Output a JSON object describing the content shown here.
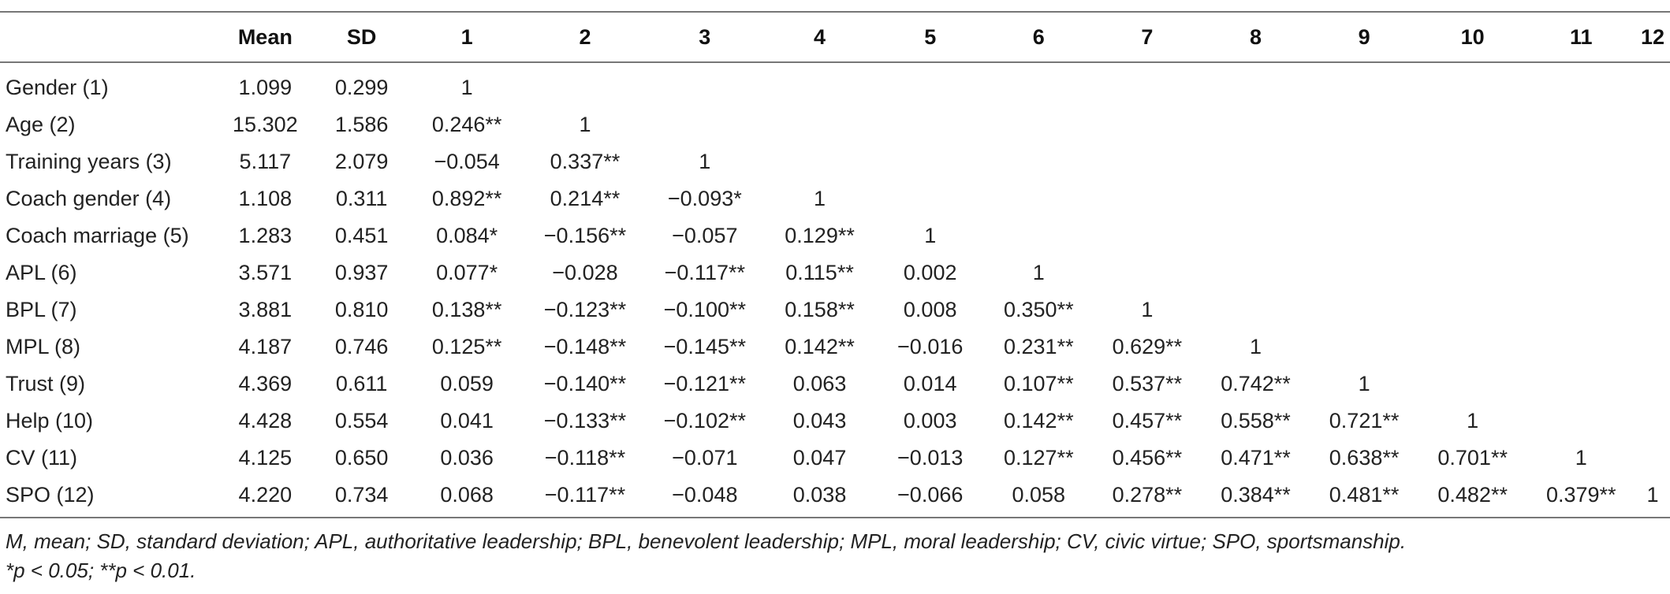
{
  "table": {
    "headers": [
      "",
      "Mean",
      "SD",
      "1",
      "2",
      "3",
      "4",
      "5",
      "6",
      "7",
      "8",
      "9",
      "10",
      "11",
      "12"
    ],
    "rows": [
      {
        "label": "Gender (1)",
        "mean": "1.099",
        "sd": "0.299",
        "cells": [
          "1",
          "",
          "",
          "",
          "",
          "",
          "",
          "",
          "",
          "",
          "",
          ""
        ]
      },
      {
        "label": "Age (2)",
        "mean": "15.302",
        "sd": "1.586",
        "cells": [
          "0.246**",
          "1",
          "",
          "",
          "",
          "",
          "",
          "",
          "",
          "",
          "",
          ""
        ]
      },
      {
        "label": "Training years (3)",
        "mean": "5.117",
        "sd": "2.079",
        "cells": [
          "−0.054",
          "0.337**",
          "1",
          "",
          "",
          "",
          "",
          "",
          "",
          "",
          "",
          ""
        ]
      },
      {
        "label": "Coach gender (4)",
        "mean": "1.108",
        "sd": "0.311",
        "cells": [
          "0.892**",
          "0.214**",
          "−0.093*",
          "1",
          "",
          "",
          "",
          "",
          "",
          "",
          "",
          ""
        ]
      },
      {
        "label": "Coach marriage (5)",
        "mean": "1.283",
        "sd": "0.451",
        "cells": [
          "0.084*",
          "−0.156**",
          "−0.057",
          "0.129**",
          "1",
          "",
          "",
          "",
          "",
          "",
          "",
          ""
        ]
      },
      {
        "label": "APL (6)",
        "mean": "3.571",
        "sd": "0.937",
        "cells": [
          "0.077*",
          "−0.028",
          "−0.117**",
          "0.115**",
          "0.002",
          "1",
          "",
          "",
          "",
          "",
          "",
          ""
        ]
      },
      {
        "label": "BPL (7)",
        "mean": "3.881",
        "sd": "0.810",
        "cells": [
          "0.138**",
          "−0.123**",
          "−0.100**",
          "0.158**",
          "0.008",
          "0.350**",
          "1",
          "",
          "",
          "",
          "",
          ""
        ]
      },
      {
        "label": "MPL (8)",
        "mean": "4.187",
        "sd": "0.746",
        "cells": [
          "0.125**",
          "−0.148**",
          "−0.145**",
          "0.142**",
          "−0.016",
          "0.231**",
          "0.629**",
          "1",
          "",
          "",
          "",
          ""
        ]
      },
      {
        "label": "Trust (9)",
        "mean": "4.369",
        "sd": "0.611",
        "cells": [
          "0.059",
          "−0.140**",
          "−0.121**",
          "0.063",
          "0.014",
          "0.107**",
          "0.537**",
          "0.742**",
          "1",
          "",
          "",
          ""
        ]
      },
      {
        "label": "Help (10)",
        "mean": "4.428",
        "sd": "0.554",
        "cells": [
          "0.041",
          "−0.133**",
          "−0.102**",
          "0.043",
          "0.003",
          "0.142**",
          "0.457**",
          "0.558**",
          "0.721**",
          "1",
          "",
          ""
        ]
      },
      {
        "label": "CV (11)",
        "mean": "4.125",
        "sd": "0.650",
        "cells": [
          "0.036",
          "−0.118**",
          "−0.071",
          "0.047",
          "−0.013",
          "0.127**",
          "0.456**",
          "0.471**",
          "0.638**",
          "0.701**",
          "1",
          ""
        ]
      },
      {
        "label": "SPO (12)",
        "mean": "4.220",
        "sd": "0.734",
        "cells": [
          "0.068",
          "−0.117**",
          "−0.048",
          "0.038",
          "−0.066",
          "0.058",
          "0.278**",
          "0.384**",
          "0.481**",
          "0.482**",
          "0.379**",
          "1"
        ]
      }
    ]
  },
  "notes": {
    "line1": "M, mean; SD, standard deviation; APL, authoritative leadership; BPL, benevolent leadership; MPL, moral leadership; CV, civic virtue; SPO, sportsmanship.",
    "line2": "*p < 0.05; **p < 0.01."
  }
}
